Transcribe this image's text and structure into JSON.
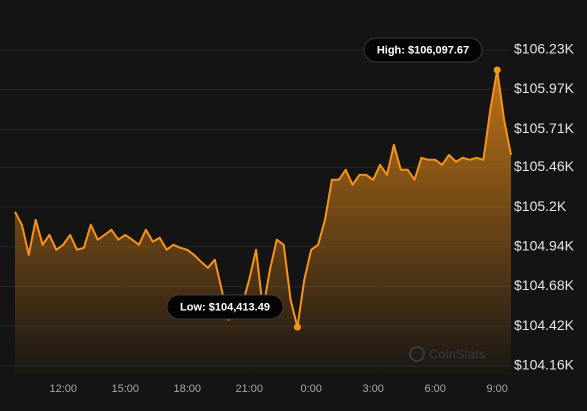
{
  "chart_data": {
    "type": "area",
    "color": "#f7931a",
    "grid": true,
    "watermark": "CoinStats",
    "high_label": "High: $106,097.67",
    "low_label": "Low: $104,413.49",
    "categories": [
      null,
      null,
      null,
      null,
      null,
      null,
      null,
      "12:00",
      null,
      null,
      null,
      null,
      null,
      null,
      null,
      null,
      "15:00",
      null,
      null,
      null,
      null,
      null,
      null,
      null,
      null,
      "18:00",
      null,
      null,
      null,
      null,
      null,
      null,
      null,
      null,
      "21:00",
      null,
      null,
      null,
      null,
      null,
      null,
      null,
      null,
      "0:00",
      null,
      null,
      null,
      null,
      null,
      null,
      null,
      null,
      "3:00",
      null,
      null,
      null,
      null,
      null,
      null,
      null,
      null,
      "6:00",
      null,
      null,
      null,
      null,
      null,
      null,
      null,
      null,
      "9:00",
      null,
      null
    ],
    "values": [
      105169,
      105084,
      104887,
      105117,
      104953,
      105018,
      104920,
      104953,
      105018,
      104920,
      104933,
      105084,
      104986,
      105018,
      105051,
      104986,
      105018,
      104986,
      104953,
      105051,
      104973,
      104999,
      104920,
      104953,
      104933,
      104920,
      104887,
      104842,
      104802,
      104855,
      104658,
      104462,
      104593,
      104560,
      104724,
      104920,
      104527,
      104789,
      104986,
      104953,
      104593,
      104413.49,
      104724,
      104920,
      104953,
      105117,
      105379,
      105379,
      105444,
      105346,
      105411,
      105411,
      105379,
      105477,
      105411,
      105608,
      105444,
      105444,
      105379,
      105523,
      105510,
      105510,
      105477,
      105542,
      105497,
      105523,
      105510,
      105523,
      105510,
      105837,
      106097.67,
      105772,
      105542
    ],
    "ylim": [
      104100,
      106360
    ],
    "yticks": [
      {
        "value": 104160,
        "label": "$104.16K"
      },
      {
        "value": 104420,
        "label": "$104.42K"
      },
      {
        "value": 104680,
        "label": "$104.68K"
      },
      {
        "value": 104940,
        "label": "$104.94K"
      },
      {
        "value": 105200,
        "label": "$105.2K"
      },
      {
        "value": 105460,
        "label": "$105.46K"
      },
      {
        "value": 105710,
        "label": "$105.71K"
      },
      {
        "value": 105970,
        "label": "$105.97K"
      },
      {
        "value": 106230,
        "label": "$106.23K"
      }
    ]
  }
}
